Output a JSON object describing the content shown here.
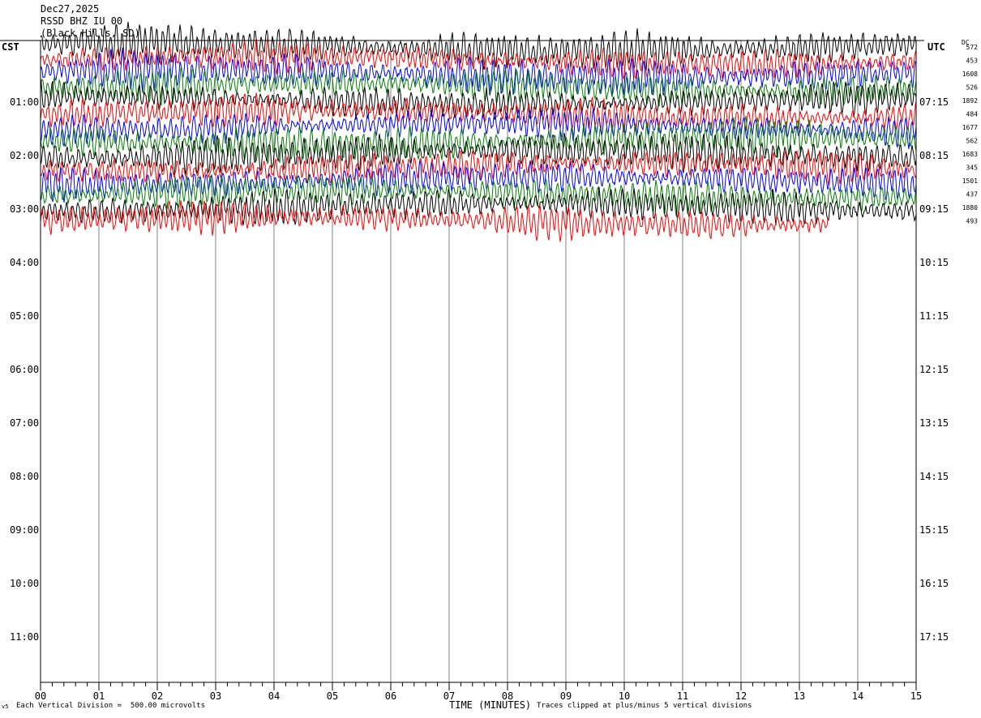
{
  "header": {
    "date": "Dec27,2025",
    "station": "RSSD BHZ IU 00",
    "location": "(Black Hills, SD)"
  },
  "left_timezone": "CST",
  "right_timezone": "UTC",
  "dc_label": "DC",
  "footer": {
    "scale_note": "Each Vertical Division =  500.00 microvolts",
    "clip_note": "Traces clipped at plus/minus 5 vertical divisions",
    "corner_mark": "v5"
  },
  "chart_data": {
    "type": "line",
    "title": "",
    "xlabel": "TIME (MINUTES)",
    "ylabel": "",
    "xlim": [
      0,
      15
    ],
    "x_ticks": [
      "00",
      "01",
      "02",
      "03",
      "04",
      "05",
      "06",
      "07",
      "08",
      "09",
      "10",
      "11",
      "12",
      "13",
      "14",
      "15"
    ],
    "left_hour_labels": [
      "01:00",
      "02:00",
      "03:00",
      "04:00",
      "05:00",
      "06:00",
      "07:00",
      "08:00",
      "09:00",
      "10:00",
      "11:00"
    ],
    "right_hour_labels": [
      "07:15",
      "08:15",
      "09:15",
      "10:15",
      "11:15",
      "12:15",
      "13:15",
      "14:15",
      "15:15",
      "16:15",
      "17:15"
    ],
    "rows_per_hour": 4,
    "minutes_per_row": 15,
    "trace_colors": [
      "#000000",
      "#ff0000",
      "#0000ff",
      "#008000"
    ],
    "dc_offsets": [
      "572",
      "453",
      "1608",
      "526",
      "1892",
      "484",
      "1677",
      "562",
      "1683",
      "345",
      "1501",
      "437",
      "1880",
      "493"
    ],
    "last_row_minutes_recorded": 13.5,
    "traces_recorded": 14,
    "vertical_division_microvolts": 500.0,
    "clip_divisions": 5
  }
}
